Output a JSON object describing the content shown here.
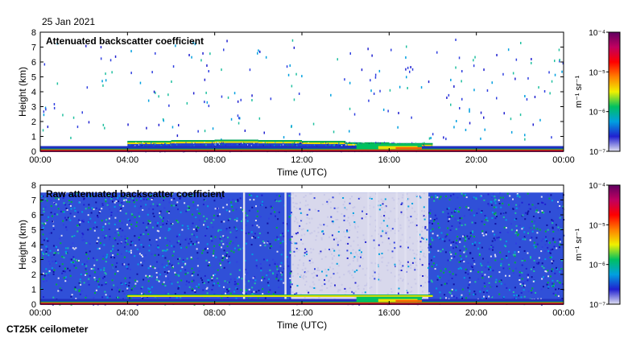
{
  "date": "25 Jan 2021",
  "footer": "CT25K ceilometer",
  "colorbar": {
    "unit_label": "m⁻¹ sr⁻¹",
    "ticks": [
      "10⁻⁴",
      "10⁻⁵",
      "10⁻⁶",
      "10⁻⁷"
    ],
    "tick_exponents": [
      -4,
      -5,
      -6,
      -7
    ],
    "scale": "log",
    "colors": [
      "#e0e0f0",
      "#2020d0",
      "#00a0e0",
      "#00c060",
      "#f0f000",
      "#ff8000",
      "#ff0000",
      "#c00060",
      "#600060"
    ]
  },
  "chart_data": [
    {
      "type": "heatmap",
      "title": "Attenuated backscatter coefficient",
      "xlabel": "Time (UTC)",
      "ylabel": "Height (km)",
      "x_ticks": [
        "00:00",
        "04:00",
        "08:00",
        "12:00",
        "16:00",
        "20:00",
        "00:00"
      ],
      "x_tick_hours": [
        0,
        4,
        8,
        12,
        16,
        20,
        24
      ],
      "y_ticks": [
        "0",
        "1",
        "2",
        "3",
        "4",
        "5",
        "6",
        "7",
        "8"
      ],
      "xlim": [
        0,
        24
      ],
      "ylim": [
        0,
        8
      ],
      "colorscale_range": [
        1e-07,
        0.0001
      ],
      "layers": [
        {
          "name": "surface layer",
          "hours": [
            0,
            24
          ],
          "top_km": [
            0.35,
            0.3
          ]
        },
        {
          "name": "boundary layer top",
          "hours": [
            4,
            6,
            8,
            10,
            12,
            14,
            16,
            18
          ],
          "top_km": [
            0.7,
            0.75,
            0.78,
            0.75,
            0.7,
            0.6,
            0.55,
            0.2
          ]
        },
        {
          "name": "strong signal region",
          "hours": [
            14.5,
            17.5
          ],
          "top_km": [
            0.5,
            0.2
          ]
        }
      ]
    },
    {
      "type": "heatmap",
      "title": "Raw attenuated backscatter coefficient",
      "xlabel": "Time (UTC)",
      "ylabel": "Height (km)",
      "x_ticks": [
        "00:00",
        "04:00",
        "08:00",
        "12:00",
        "16:00",
        "20:00",
        "00:00"
      ],
      "x_tick_hours": [
        0,
        4,
        8,
        12,
        16,
        20,
        24
      ],
      "y_ticks": [
        "0",
        "1",
        "2",
        "3",
        "4",
        "5",
        "6",
        "7",
        "8"
      ],
      "xlim": [
        0,
        24
      ],
      "ylim": [
        0,
        8
      ],
      "colorscale_range": [
        1e-07,
        0.0001
      ],
      "noise_ceiling_km": 7.5,
      "low_noise_hours": [
        [
          11.5,
          17.8
        ]
      ]
    }
  ]
}
